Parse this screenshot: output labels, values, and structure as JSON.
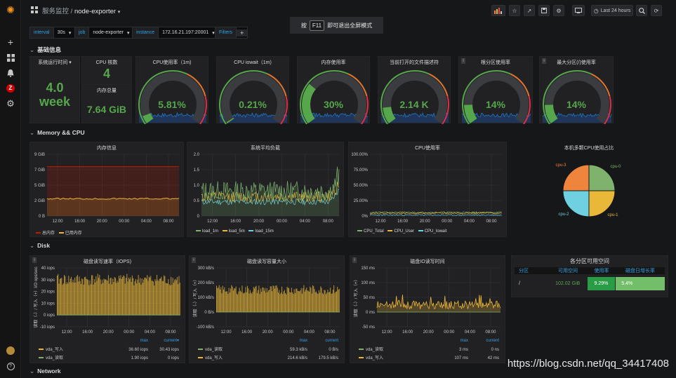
{
  "topbar": {
    "breadcrumb_folder": "服务监控",
    "breadcrumb_sep": "/",
    "dashboard": "node-exporter",
    "time_range": "Last 24 hours"
  },
  "banner": {
    "pre": "按",
    "key": "F11",
    "post": "即可退出全屏模式"
  },
  "vars": [
    {
      "label": "interval",
      "value": "30s"
    },
    {
      "label": "job",
      "value": "node-exporter"
    },
    {
      "label": "instance",
      "value": "172.16.21.197:20001"
    },
    {
      "label": "Filters",
      "value": "+"
    }
  ],
  "rows": {
    "basic": "基础信息",
    "mem": "Memory && CPU",
    "disk": "Disk",
    "net": "Network"
  },
  "basic": {
    "uptime_title": "系统运行时间",
    "uptime_value": "4.0",
    "uptime_unit": "week",
    "cpu_cores_title": "CPU 核数",
    "cpu_cores": "4",
    "mem_total_title": "内存总量",
    "mem_total": "7.64 GiB",
    "gauges": [
      {
        "title": "CPU使用率（1m)",
        "value": "5.81%",
        "fraction": 0.0581
      },
      {
        "title": "CPU iowait（1m)",
        "value": "0.21%",
        "fraction": 0.0021
      },
      {
        "title": "内存使用率",
        "value": "30%",
        "fraction": 0.3
      },
      {
        "title": "当前打开的文件描述符",
        "value": "2.14 K",
        "fraction": 0.12
      },
      {
        "title": "根分区使用率",
        "value": "14%",
        "fraction": 0.14
      },
      {
        "title": "最大分区(/)使用率",
        "value": "14%",
        "fraction": 0.14
      }
    ]
  },
  "mem_panel": {
    "title": "内存信息",
    "yticks": [
      "9 GiB",
      "7 GiB",
      "5 GiB",
      "2 GiB",
      "0 B"
    ],
    "xticks": [
      "12:00",
      "16:00",
      "20:00",
      "00:00",
      "04:00",
      "08:00"
    ],
    "legend": [
      {
        "name": "总内存",
        "color": "#bf1b00"
      },
      {
        "name": "已用内存",
        "color": "#eab839"
      }
    ]
  },
  "load_panel": {
    "title": "系统平均负载",
    "yticks": [
      "2.0",
      "1.5",
      "1.0",
      "0.5",
      "0"
    ],
    "xticks": [
      "12:00",
      "16:00",
      "20:00",
      "00:00",
      "04:00",
      "08:00"
    ],
    "legend": [
      {
        "name": "load_1m",
        "color": "#7eb26d"
      },
      {
        "name": "load_5m",
        "color": "#eab839"
      },
      {
        "name": "load_15m",
        "color": "#6ed0e0"
      }
    ]
  },
  "cpu_panel": {
    "title": "CPU使用率",
    "yticks": [
      "100.00%",
      "75.00%",
      "50.00%",
      "25.00%",
      "0%"
    ],
    "xticks": [
      "12:00",
      "16:00",
      "20:00",
      "00:00",
      "04:00",
      "08:00"
    ],
    "legend": [
      {
        "name": "CPU_Total",
        "color": "#7eb26d"
      },
      {
        "name": "CPU_User",
        "color": "#eab839"
      },
      {
        "name": "CPU_Iowait",
        "color": "#6ed0e0"
      }
    ]
  },
  "pie_panel": {
    "title": "本机多颗CPU使用占比",
    "slices": [
      {
        "name": "cpu-0",
        "value": 25,
        "color": "#7eb26d"
      },
      {
        "name": "cpu-1",
        "value": 25,
        "color": "#eab839"
      },
      {
        "name": "cpu-2",
        "value": 25,
        "color": "#6ed0e0"
      },
      {
        "name": "cpu-3",
        "value": 25,
        "color": "#ef843c"
      }
    ]
  },
  "iops_panel": {
    "title": "磁盘读写速率（IOPS)",
    "ylabel": "读取（-）/ 写入（+）I/O ops/sec",
    "yticks": [
      "40 iops",
      "30 iops",
      "20 iops",
      "10 iops",
      "0 iops",
      "-10 iops"
    ],
    "xticks": [
      "12:00",
      "16:00",
      "20:00",
      "00:00",
      "04:00",
      "08:00"
    ],
    "col_max": "max",
    "col_cur": "current▾",
    "rows": [
      {
        "name": "vda_写入",
        "color": "#eab839",
        "max": "36.60 iops",
        "cur": "30.43 iops"
      },
      {
        "name": "vda_读取",
        "color": "#7eb26d",
        "max": "1.90 iops",
        "cur": "0 iops"
      }
    ]
  },
  "cap_panel": {
    "title": "磁盘读写容量大小",
    "ylabel": "读取（-）/ 写入（+）",
    "yticks": [
      "300 kB/s",
      "200 kB/s",
      "100 kB/s",
      "0 B/s",
      "-100 kB/s"
    ],
    "xticks": [
      "12:00",
      "16:00",
      "20:00",
      "00:00",
      "04:00",
      "08:00"
    ],
    "col_max": "max",
    "col_cur": "current",
    "rows": [
      {
        "name": "vda_读取",
        "color": "#7eb26d",
        "max": "59.3 kB/s",
        "cur": "0 B/s"
      },
      {
        "name": "vda_写入",
        "color": "#eab839",
        "max": "214.6 kB/s",
        "cur": "179.5 kB/s"
      }
    ]
  },
  "io_panel": {
    "title": "磁盘IO读写时间",
    "ylabel": "读取（-）/ 写入（+）",
    "yticks": [
      "150 ms",
      "100 ms",
      "50 ms",
      "0 ms",
      "-50 ms"
    ],
    "xticks": [
      "12:00",
      "16:00",
      "20:00",
      "00:00",
      "04:00",
      "08:00"
    ],
    "col_max": "max",
    "col_cur": "current",
    "rows": [
      {
        "name": "vda_读取",
        "color": "#7eb26d",
        "max": "3 ms",
        "cur": "0 ns"
      },
      {
        "name": "vda_写入",
        "color": "#eab839",
        "max": "107 ms",
        "cur": "42 ms"
      }
    ]
  },
  "part_panel": {
    "title": "各分区可用空间",
    "headers": [
      "分区",
      "可用空间",
      "使用率",
      "磁盘日增长率"
    ],
    "row": {
      "mount": "/",
      "free": "102.02 GiB",
      "usage": "9.29%",
      "growth": "5.4%"
    }
  },
  "watermark": "https://blog.csdn.net/qq_34417408"
}
